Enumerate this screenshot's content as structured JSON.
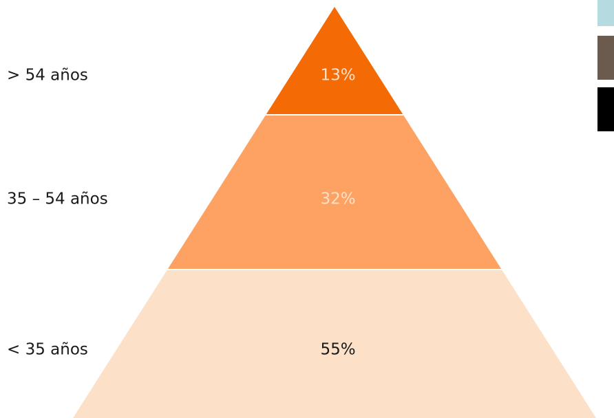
{
  "chart_data": {
    "type": "pyramid",
    "title": "",
    "categories": [
      "> 54 años",
      "35 – 54 años",
      "< 35 años"
    ],
    "values": [
      13,
      32,
      55
    ],
    "value_labels": [
      "13%",
      "32%",
      "55%"
    ],
    "unit": "%",
    "colors": {
      "segments": [
        "#f46a04",
        "#fda263",
        "#fde0c8"
      ],
      "value_text": [
        "#fde0c8",
        "#fde0c8",
        "#1a1a1a"
      ],
      "swatches": [
        "#b5dbe0",
        "#6b5a4e",
        "#000000"
      ]
    }
  }
}
